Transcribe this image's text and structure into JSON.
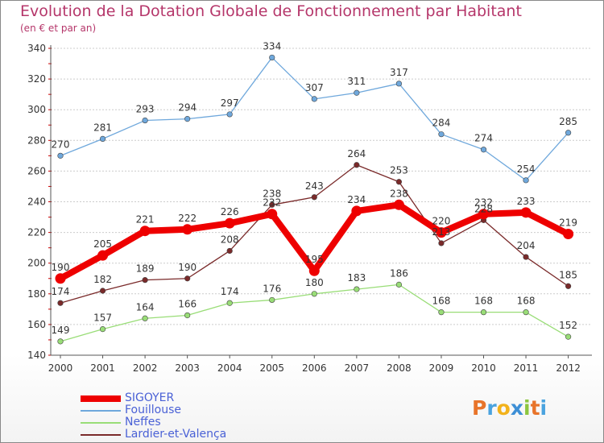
{
  "title": "Evolution de la Dotation Globale de Fonctionnement par Habitant",
  "subtitle": "(en € et par an)",
  "chart_data": {
    "type": "line",
    "title": "Evolution de la Dotation Globale de Fonctionnement par Habitant",
    "subtitle": "(en € et par an)",
    "xlabel": "",
    "ylabel": "",
    "ylim": [
      140,
      340
    ],
    "yticks": [
      140,
      160,
      180,
      200,
      220,
      240,
      260,
      280,
      300,
      320,
      340
    ],
    "grid": true,
    "legend_position": "bottom-left",
    "categories": [
      "2000",
      "2001",
      "2002",
      "2003",
      "2004",
      "2005",
      "2006",
      "2007",
      "2008",
      "2009",
      "2010",
      "2011",
      "2012"
    ],
    "series": [
      {
        "name": "SIGOYER",
        "color": "#ee0000",
        "values": [
          190,
          205,
          221,
          222,
          226,
          232,
          195,
          234,
          238,
          220,
          232,
          233,
          219
        ]
      },
      {
        "name": "Fouillouse",
        "color": "#6fa8dc",
        "values": [
          270,
          281,
          293,
          294,
          297,
          334,
          307,
          311,
          317,
          284,
          274,
          254,
          285
        ]
      },
      {
        "name": "Neffes",
        "color": "#99dd77",
        "values": [
          149,
          157,
          164,
          166,
          174,
          176,
          180,
          183,
          186,
          168,
          168,
          168,
          152
        ]
      },
      {
        "name": "Lardier-et-Valença",
        "color": "#7a2a2a",
        "values": [
          174,
          182,
          189,
          190,
          208,
          238,
          243,
          264,
          253,
          213,
          228,
          204,
          185
        ]
      }
    ]
  },
  "logo": {
    "text": "Proxiti",
    "letters": [
      "P",
      "r",
      "o",
      "x",
      "i",
      "t",
      "i"
    ],
    "colors": [
      "#e8742a",
      "#4aa3df",
      "#f2b21b",
      "#3d8fd6",
      "#8cc63f",
      "#e8742a",
      "#4aa3df"
    ]
  }
}
